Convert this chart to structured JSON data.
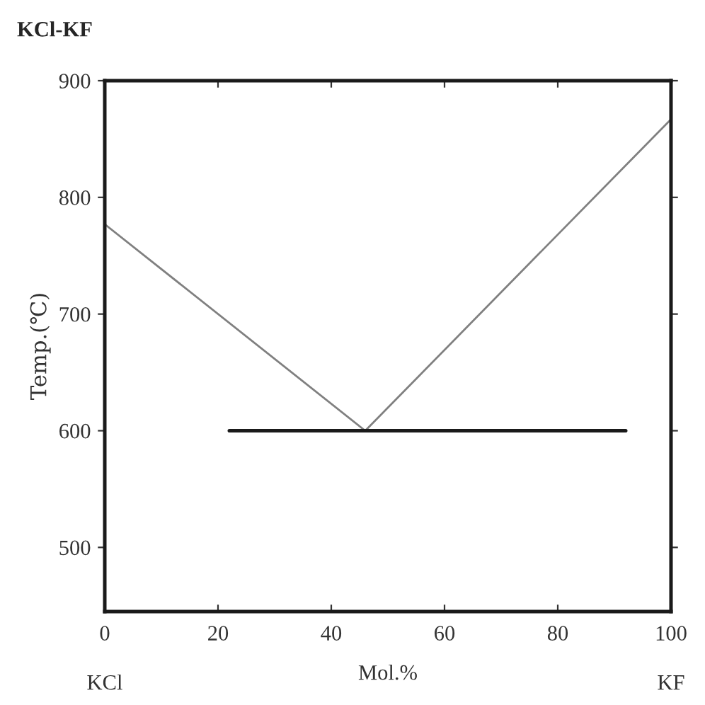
{
  "chart_data": {
    "type": "line",
    "title": "KCl-KF",
    "xlabel": "Mol.%",
    "ylabel": "Temp.(℃)",
    "series": [
      {
        "x": [
          0,
          46,
          100
        ],
        "values": [
          777,
          600,
          867
        ],
        "color": "#808080"
      },
      {
        "x": [
          22,
          92
        ],
        "values": [
          600,
          600
        ],
        "color": "#1a1a1a"
      }
    ],
    "annotations": [
      "KCl",
      "KF"
    ],
    "xlim": [
      0,
      100
    ],
    "xticks": [
      0,
      20,
      40,
      60,
      80,
      100
    ],
    "ylim": [
      445,
      900
    ],
    "yticks": [
      500,
      600,
      700,
      800,
      900
    ],
    "grid": false,
    "marker": "none",
    "line_style": "solid"
  }
}
